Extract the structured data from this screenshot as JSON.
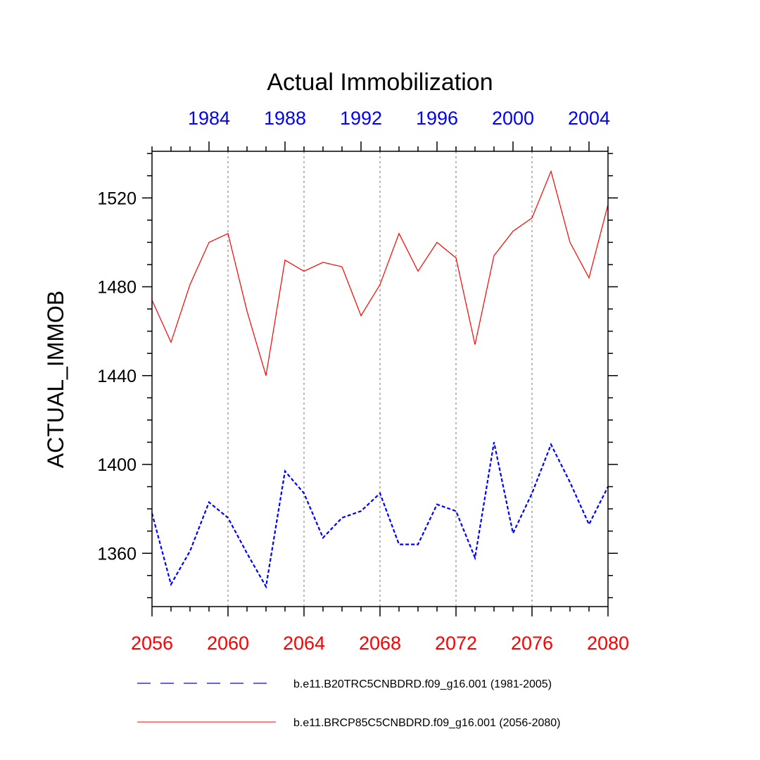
{
  "chart_data": {
    "type": "line",
    "title": "Actual Immobilization",
    "ylabel": "ACTUAL_IMMOB",
    "ylim": [
      1336,
      1541
    ],
    "y_major_ticks": [
      1360,
      1400,
      1440,
      1480,
      1520
    ],
    "y_minor_step": 10,
    "bottom_axis": {
      "range": [
        2056,
        2080
      ],
      "major_ticks": [
        "2056",
        "2060",
        "2064",
        "2068",
        "2072",
        "2076",
        "2080"
      ],
      "color": "#ff0000"
    },
    "top_axis": {
      "range": [
        1981,
        2005
      ],
      "major_ticks": [
        "1984",
        "1988",
        "1992",
        "1996",
        "2000",
        "2004"
      ],
      "color": "#0000ff"
    },
    "vertical_gridlines_at": [
      2060,
      2064,
      2068,
      2072,
      2076
    ],
    "series": [
      {
        "name": "b.e11.B20TRC5CNBDRD.f09_g16.001 (1981-2005)",
        "color": "#0000ff",
        "dash": "dashed",
        "x": [
          2056,
          2057,
          2058,
          2059,
          2060,
          2061,
          2062,
          2063,
          2064,
          2065,
          2066,
          2067,
          2068,
          2069,
          2070,
          2071,
          2072,
          2073,
          2074,
          2075,
          2076,
          2077,
          2078,
          2079,
          2080
        ],
        "values": [
          1378,
          1346,
          1361,
          1383,
          1376,
          1360,
          1345,
          1397,
          1387,
          1367,
          1376,
          1379,
          1387,
          1364,
          1364,
          1382,
          1379,
          1358,
          1410,
          1369,
          1387,
          1409,
          1392,
          1373,
          1390
        ]
      },
      {
        "name": "b.e11.BRCP85C5CNBDRD.f09_g16.001 (2056-2080)",
        "color": "#ff0000",
        "dash": "solid",
        "x": [
          2056,
          2057,
          2058,
          2059,
          2060,
          2061,
          2062,
          2063,
          2064,
          2065,
          2066,
          2067,
          2068,
          2069,
          2070,
          2071,
          2072,
          2073,
          2074,
          2075,
          2076,
          2077,
          2078,
          2079,
          2080
        ],
        "values": [
          1474,
          1455,
          1481,
          1500,
          1504,
          1469,
          1440,
          1492,
          1487,
          1491,
          1489,
          1467,
          1481,
          1504,
          1487,
          1500,
          1493,
          1454,
          1494,
          1505,
          1511,
          1532,
          1500,
          1484,
          1517
        ]
      }
    ],
    "legend_position": "bottom"
  }
}
